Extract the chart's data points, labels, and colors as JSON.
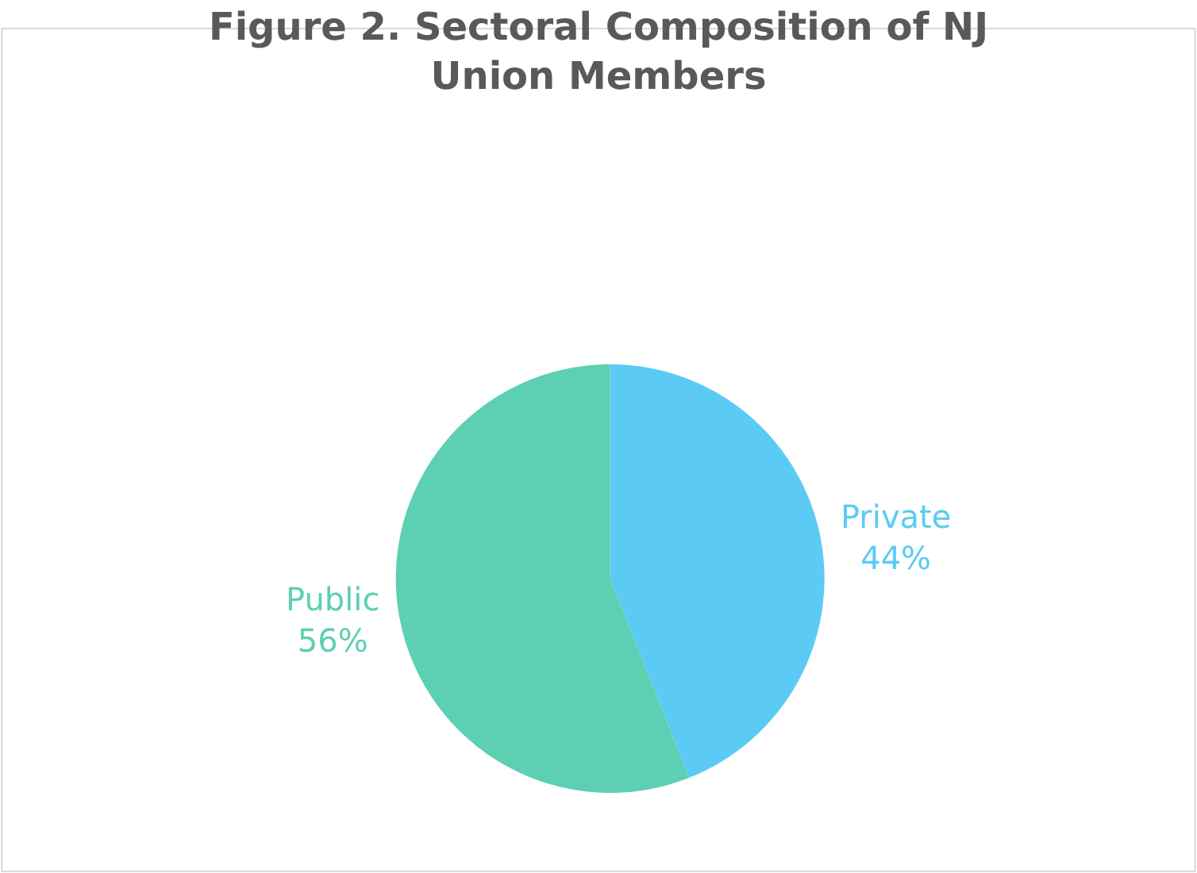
{
  "chart_data": {
    "type": "pie",
    "title": "Figure 2. Sectoral Composition of NJ Union Members",
    "categories": [
      "Private",
      "Public"
    ],
    "values": [
      44,
      56
    ],
    "value_labels": [
      "44%",
      "56%"
    ],
    "colors": [
      "#5bcbf5",
      "#5dcfb2"
    ],
    "legend": false
  }
}
